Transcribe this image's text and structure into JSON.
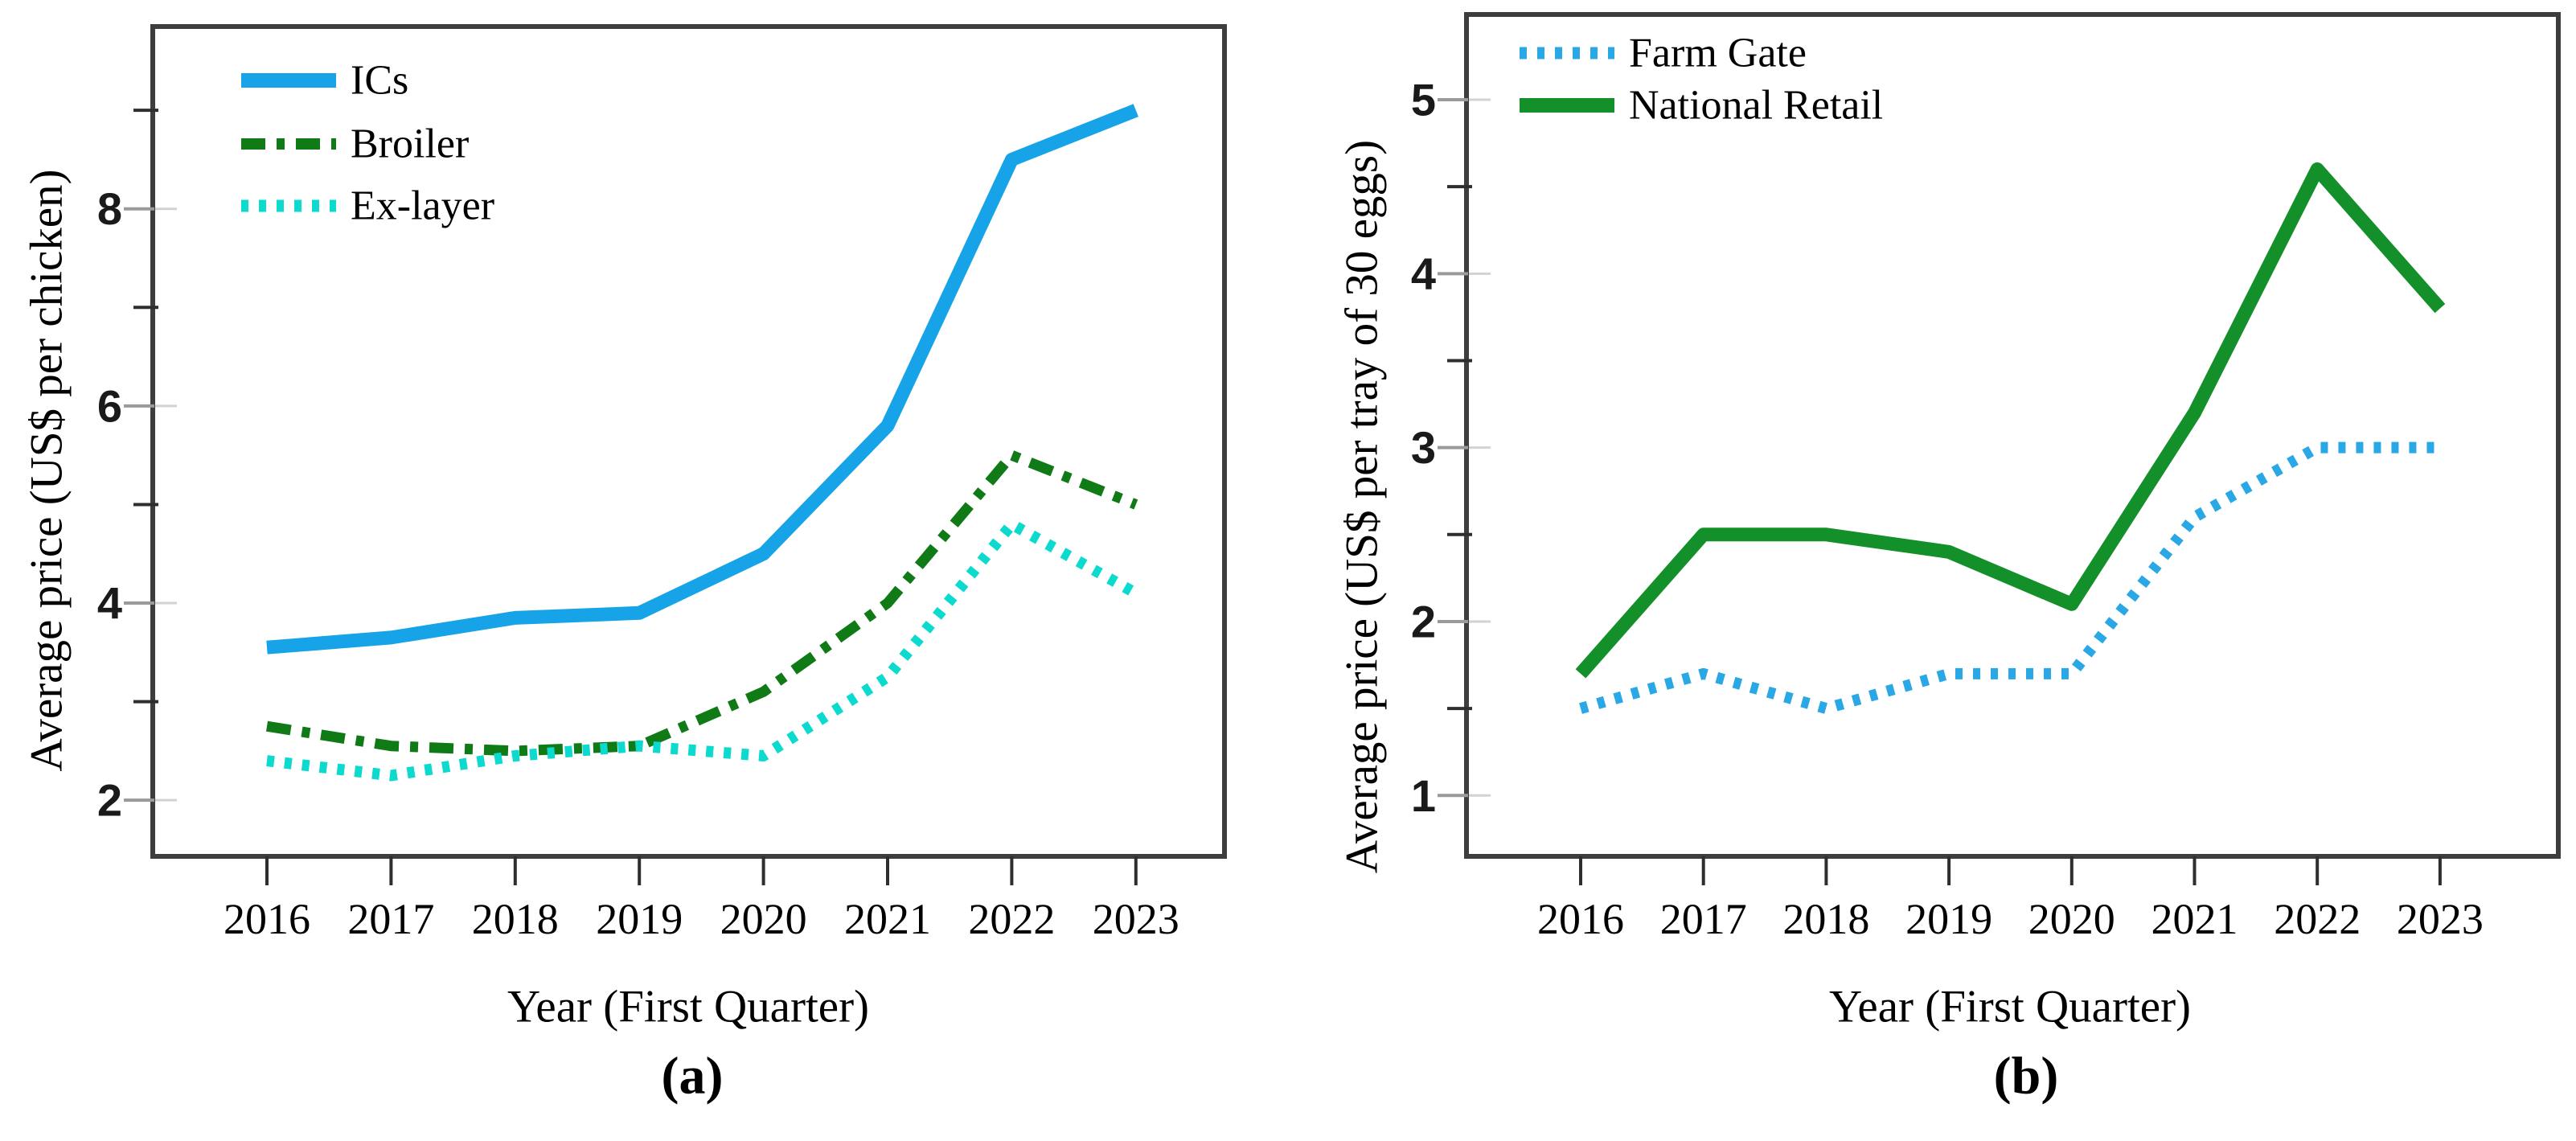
{
  "figure": {
    "background": "#ffffff",
    "axis_color": "#3d3d3d",
    "major_tick_color": "#9a9a9a",
    "minor_tick_color": "#2e2e2e"
  },
  "chart_data": [
    {
      "panel": "a",
      "type": "line",
      "caption": "(a)",
      "xlabel": "Year (First Quarter)",
      "ylabel": "Average price (US$ per chicken)",
      "x": [
        2016,
        2017,
        2018,
        2019,
        2020,
        2021,
        2022,
        2023
      ],
      "yticks": [
        2,
        4,
        6,
        8
      ],
      "minor_yticks": [
        3,
        5,
        7,
        9
      ],
      "ylim": [
        1.43,
        9.85
      ],
      "grid": false,
      "legend_position": "top-left",
      "series": [
        {
          "name": "ICs",
          "color": "#16A3E8",
          "style": "solid",
          "values": [
            3.55,
            3.65,
            3.85,
            3.9,
            4.5,
            5.8,
            8.5,
            9.0
          ]
        },
        {
          "name": "Broiler",
          "color": "#107A16",
          "style": "dash-dot",
          "values": [
            2.75,
            2.55,
            2.5,
            2.55,
            3.1,
            4.0,
            5.5,
            5.0
          ]
        },
        {
          "name": "Ex-layer",
          "color": "#0CDACE",
          "style": "dotted",
          "values": [
            2.4,
            2.25,
            2.45,
            2.55,
            2.45,
            3.25,
            4.8,
            4.1
          ]
        }
      ]
    },
    {
      "panel": "b",
      "type": "line",
      "caption": "(b)",
      "xlabel": "Year (First Quarter)",
      "ylabel": "Average price (US$ per tray of 30 eggs)",
      "x": [
        2016,
        2017,
        2018,
        2019,
        2020,
        2021,
        2022,
        2023
      ],
      "yticks": [
        1,
        2,
        3,
        4,
        5
      ],
      "minor_yticks": [
        1.5,
        2.5,
        3.5,
        4.5
      ],
      "ylim": [
        0.65,
        5.49
      ],
      "grid": false,
      "legend_position": "top-left",
      "series": [
        {
          "name": "Farm Gate",
          "color": "#2AA7E5",
          "style": "dotted",
          "values": [
            1.5,
            1.7,
            1.5,
            1.7,
            1.7,
            2.6,
            3.0,
            3.0
          ]
        },
        {
          "name": "National Retail",
          "color": "#13902A",
          "style": "solid",
          "values": [
            1.7,
            2.5,
            2.5,
            2.4,
            2.1,
            3.2,
            4.6,
            3.8
          ]
        }
      ]
    }
  ]
}
